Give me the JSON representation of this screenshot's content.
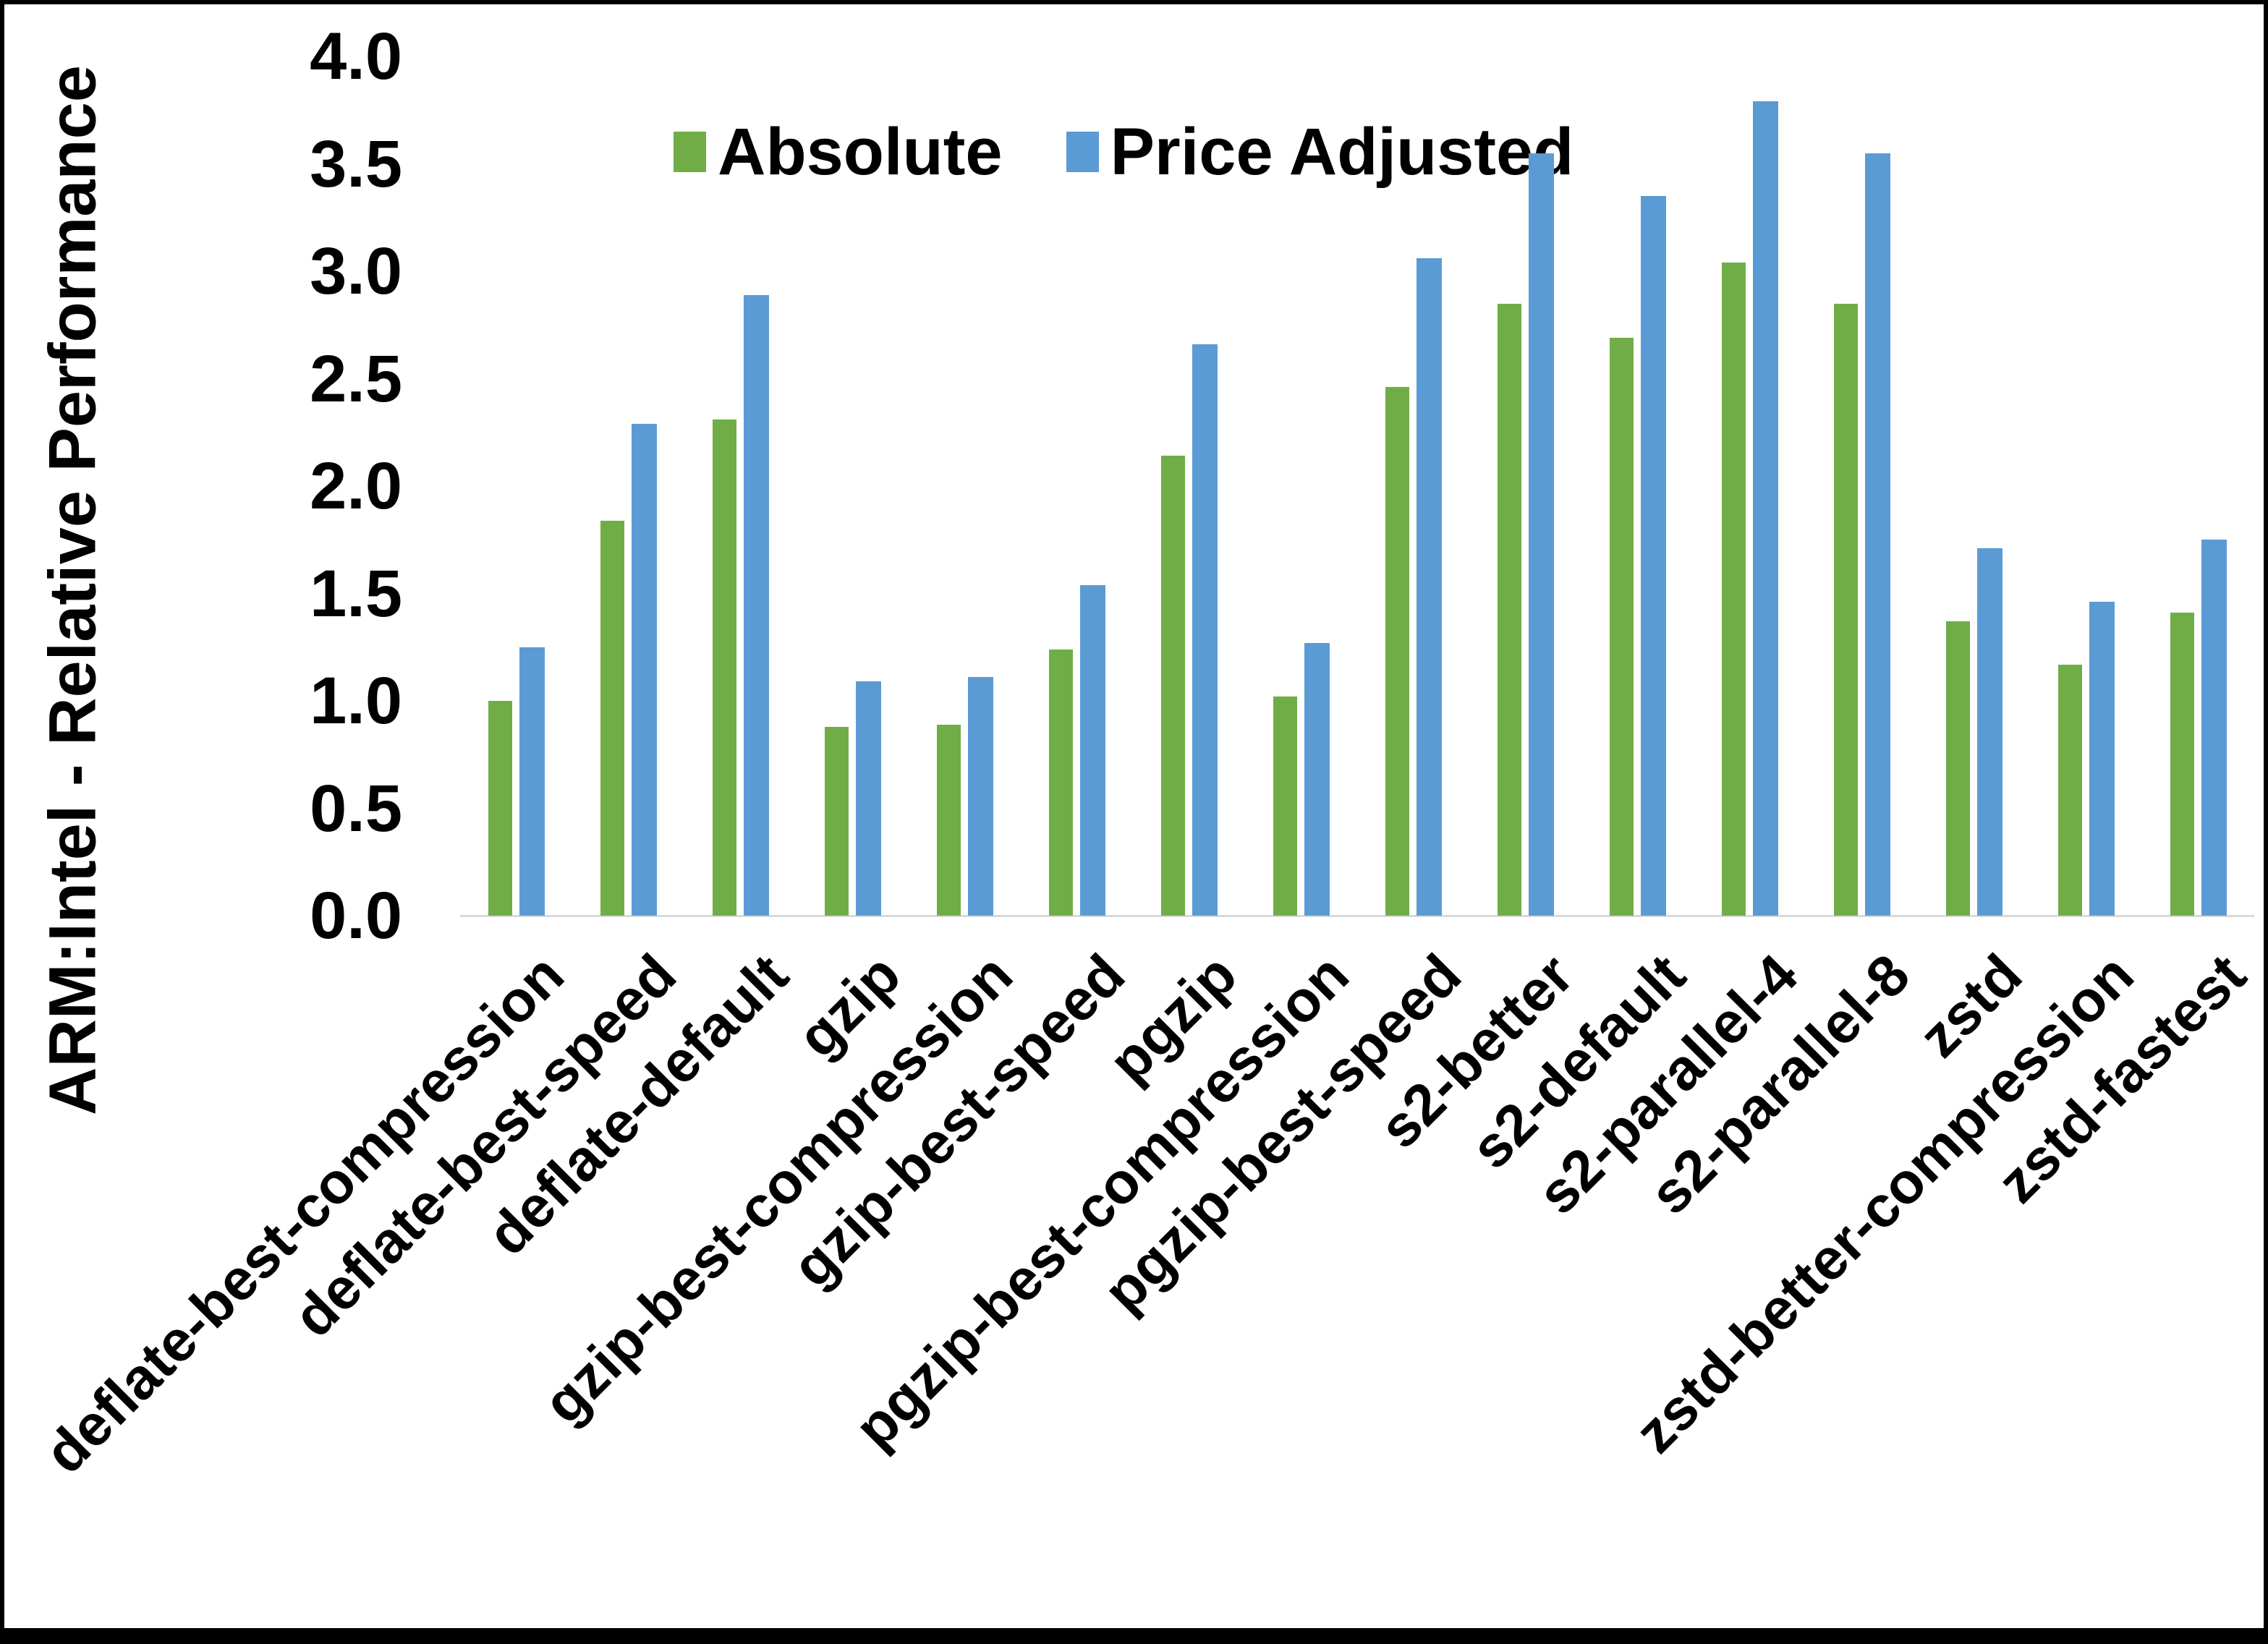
{
  "chart_data": {
    "type": "bar",
    "title": "",
    "xlabel": "",
    "ylabel": "ARM:Intel - Relative Performance",
    "ylim": [
      0.0,
      4.0
    ],
    "ytick_step": 0.5,
    "ytick_labels": [
      "0.0",
      "0.5",
      "1.0",
      "1.5",
      "2.0",
      "2.5",
      "3.0",
      "3.5",
      "4.0"
    ],
    "grid": false,
    "legend_position": "top-center",
    "categories": [
      "deflate-best-compression",
      "deflate-best-speed",
      "deflate-default",
      "gzip",
      "gzip-best-compression",
      "gzip-best-speed",
      "pgzip",
      "pgzip-best-compression",
      "pgzip-best-speed",
      "s2-better",
      "s2-default",
      "s2-parallel-4",
      "s2-parallel-8",
      "zstd",
      "zstd-better-compression",
      "zstd-fastest"
    ],
    "series": [
      {
        "name": "Absolute",
        "color": "#70AD47",
        "values": [
          1.0,
          1.84,
          2.31,
          0.88,
          0.89,
          1.24,
          2.14,
          1.02,
          2.46,
          2.85,
          2.69,
          3.04,
          2.85,
          1.37,
          1.17,
          1.41
        ]
      },
      {
        "name": "Price Adjusted",
        "color": "#5B9BD5",
        "values": [
          1.25,
          2.29,
          2.89,
          1.09,
          1.11,
          1.54,
          2.66,
          1.27,
          3.06,
          3.55,
          3.35,
          3.79,
          3.55,
          1.71,
          1.46,
          1.75
        ]
      }
    ]
  },
  "colors": {
    "axis_line": "#d9d9d9",
    "frame": "#000000"
  }
}
